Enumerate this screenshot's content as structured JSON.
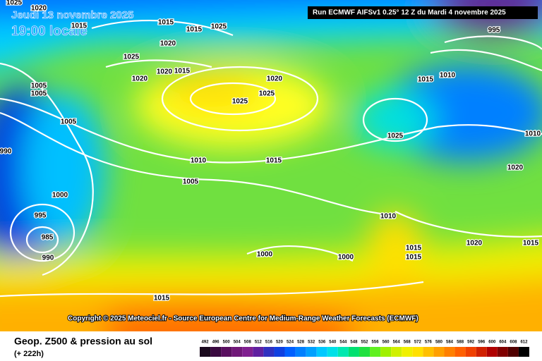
{
  "header": {
    "date": "Jeudi 13 novembre 2025",
    "time": "19:00 locale",
    "run": "Run ECMWF AIFSv1 0.25° 12 Z du Mardi 4 novembre 2025"
  },
  "copyright": "Copyright © 2025 Meteociel.fr - Source European Centre for Medium-Range Weather Forecasts (ECMWF)",
  "footer": {
    "title": "Geop. Z500 & pression au sol",
    "lead": "(+ 222h)"
  },
  "isobar_labels": [
    1020,
    1025,
    1015,
    1015,
    1025,
    1015,
    1020,
    1025,
    1020,
    1020,
    1015,
    1005,
    1005,
    1005,
    990,
    1000,
    995,
    985,
    990,
    1010,
    1005,
    1015,
    1025,
    1025,
    1020,
    1015,
    1010,
    995,
    1025,
    1010,
    1020,
    1010,
    1015,
    1015,
    1020,
    1015,
    1000,
    1000,
    1015
  ],
  "legend": {
    "values": [
      492,
      496,
      500,
      504,
      508,
      512,
      516,
      520,
      524,
      528,
      532,
      536,
      540,
      544,
      548,
      552,
      556,
      560,
      564,
      568,
      572,
      576,
      580,
      584,
      588,
      592,
      596,
      600,
      604,
      608,
      612
    ],
    "colors": [
      "#1a0a1e",
      "#3a0a40",
      "#5a1060",
      "#701878",
      "#802090",
      "#6020a0",
      "#3030c0",
      "#1040e0",
      "#0060ff",
      "#0080ff",
      "#00a0ff",
      "#00c8ff",
      "#00e0e8",
      "#00e8b0",
      "#00e070",
      "#20e040",
      "#60f020",
      "#a0f000",
      "#d0f000",
      "#f0f000",
      "#ffe000",
      "#ffc000",
      "#ffa000",
      "#ff8000",
      "#ff6000",
      "#f04000",
      "#d02000",
      "#b00000",
      "#800000",
      "#500000",
      "#000000"
    ]
  }
}
